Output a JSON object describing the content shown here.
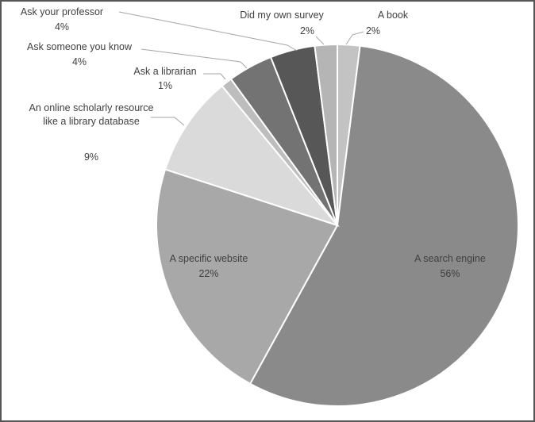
{
  "chart_data": {
    "type": "pie",
    "categories": [
      "A book",
      "A search engine",
      "A specific website",
      "An online scholarly resource like a library database",
      "Ask a librarian",
      "Ask someone you know",
      "Ask your professor",
      "Did my own survey"
    ],
    "values": [
      2,
      56,
      22,
      9,
      1,
      4,
      4,
      2
    ],
    "value_labels": [
      "2%",
      "56%",
      "22%",
      "9%",
      "1%",
      "4%",
      "4%",
      "2%"
    ],
    "colors": [
      "#c3c3c3",
      "#8a8a8a",
      "#a8a8a8",
      "#dadada",
      "#bdbdbd",
      "#737373",
      "#575757",
      "#b5b5b5"
    ]
  }
}
